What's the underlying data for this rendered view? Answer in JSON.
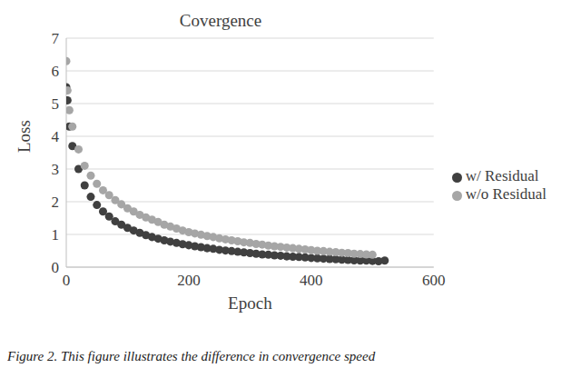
{
  "chart_data": {
    "type": "scatter",
    "title": "Covergence",
    "x_label": "Epoch",
    "y_label": "Loss",
    "caption": "Figure 2. This figure illustrates the difference in convergence speed",
    "xlim": [
      0,
      600
    ],
    "xticks": [
      0,
      200,
      400,
      600
    ],
    "ylim": [
      0,
      7
    ],
    "yticks": [
      0,
      1,
      2,
      3,
      4,
      5,
      6,
      7
    ],
    "grid": true,
    "legend": "right",
    "series": [
      {
        "name": "w/ Residual",
        "color": "#404040",
        "marker": "circle",
        "x": [
          0,
          2,
          5,
          10,
          20,
          30,
          40,
          50,
          60,
          70,
          80,
          90,
          100,
          110,
          120,
          130,
          140,
          150,
          160,
          170,
          180,
          190,
          200,
          210,
          220,
          230,
          240,
          250,
          260,
          270,
          280,
          290,
          300,
          310,
          320,
          330,
          340,
          350,
          360,
          370,
          380,
          390,
          400,
          410,
          420,
          430,
          440,
          450,
          460,
          470,
          480,
          490,
          500,
          510,
          520
        ],
        "values": [
          5.5,
          5.1,
          4.3,
          3.7,
          3.0,
          2.5,
          2.15,
          1.9,
          1.7,
          1.55,
          1.4,
          1.3,
          1.2,
          1.12,
          1.05,
          0.98,
          0.92,
          0.87,
          0.82,
          0.78,
          0.74,
          0.7,
          0.67,
          0.64,
          0.61,
          0.58,
          0.56,
          0.53,
          0.51,
          0.49,
          0.47,
          0.45,
          0.43,
          0.41,
          0.39,
          0.38,
          0.36,
          0.35,
          0.33,
          0.32,
          0.31,
          0.3,
          0.28,
          0.27,
          0.26,
          0.25,
          0.24,
          0.23,
          0.22,
          0.21,
          0.2,
          0.2,
          0.19,
          0.18,
          0.2
        ]
      },
      {
        "name": "w/o Residual",
        "color": "#a6a6a6",
        "marker": "circle",
        "x": [
          0,
          2,
          5,
          10,
          20,
          30,
          40,
          50,
          60,
          70,
          80,
          90,
          100,
          110,
          120,
          130,
          140,
          150,
          160,
          170,
          180,
          190,
          200,
          210,
          220,
          230,
          240,
          250,
          260,
          270,
          280,
          290,
          300,
          310,
          320,
          330,
          340,
          350,
          360,
          370,
          380,
          390,
          400,
          410,
          420,
          430,
          440,
          450,
          460,
          470,
          480,
          490,
          500
        ],
        "values": [
          6.3,
          5.4,
          4.8,
          4.3,
          3.6,
          3.1,
          2.8,
          2.55,
          2.35,
          2.2,
          2.05,
          1.92,
          1.8,
          1.7,
          1.6,
          1.52,
          1.45,
          1.38,
          1.3,
          1.24,
          1.18,
          1.12,
          1.07,
          1.03,
          0.99,
          0.95,
          0.92,
          0.88,
          0.85,
          0.82,
          0.79,
          0.76,
          0.74,
          0.71,
          0.69,
          0.66,
          0.64,
          0.62,
          0.6,
          0.58,
          0.56,
          0.54,
          0.52,
          0.5,
          0.49,
          0.47,
          0.46,
          0.44,
          0.43,
          0.41,
          0.4,
          0.39,
          0.38
        ]
      }
    ]
  }
}
